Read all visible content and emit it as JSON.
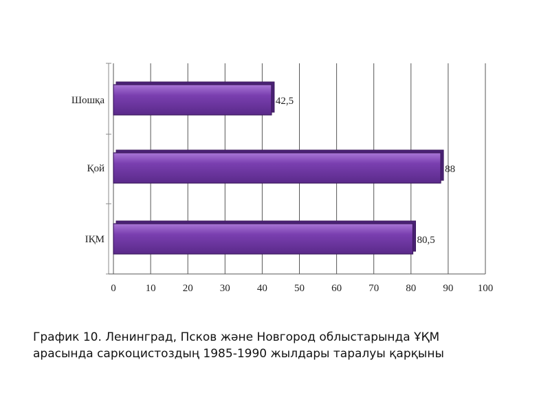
{
  "chart_data": {
    "type": "bar",
    "orientation": "horizontal",
    "categories": [
      "Шошқа",
      "Қой",
      "ІҚМ"
    ],
    "values": [
      42.5,
      88,
      80.5
    ],
    "value_labels": [
      "42,5",
      "88",
      "80,5"
    ],
    "xlim": [
      0,
      100
    ],
    "x_ticks": [
      "0",
      "10",
      "20",
      "30",
      "40",
      "50",
      "60",
      "70",
      "80",
      "90",
      "100"
    ],
    "grid": true,
    "legend": "none",
    "bar_color": "#7a3fb0",
    "bar_edge_color": "#3d1a5e"
  },
  "caption": {
    "line1": "График 10. Ленинград, Псков және Новгород облыстарында ҰҚМ",
    "line2": "арасында саркоцистоздың 1985-1990 жылдары таралуы қарқыны"
  }
}
